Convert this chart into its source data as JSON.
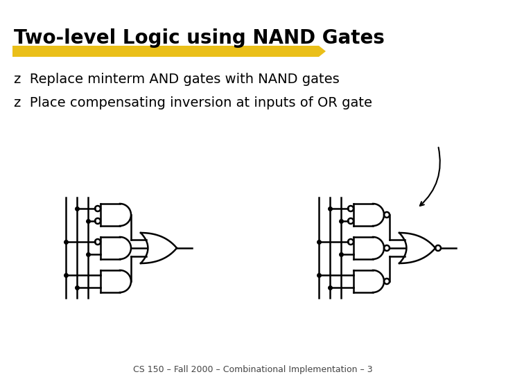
{
  "title": "Two-level Logic using NAND Gates",
  "bullet1": "z  Replace minterm AND gates with NAND gates",
  "bullet2": "z  Place compensating inversion at inputs of OR gate",
  "footer": "CS 150 – Fall 2000 – Combinational Implementation – 3",
  "bg_color": "#ffffff",
  "title_color": "#000000",
  "highlight_color": "#e8b800",
  "text_color": "#000000",
  "gate_color": "#000000",
  "title_fontsize": 20,
  "bullet_fontsize": 14,
  "footer_fontsize": 9
}
